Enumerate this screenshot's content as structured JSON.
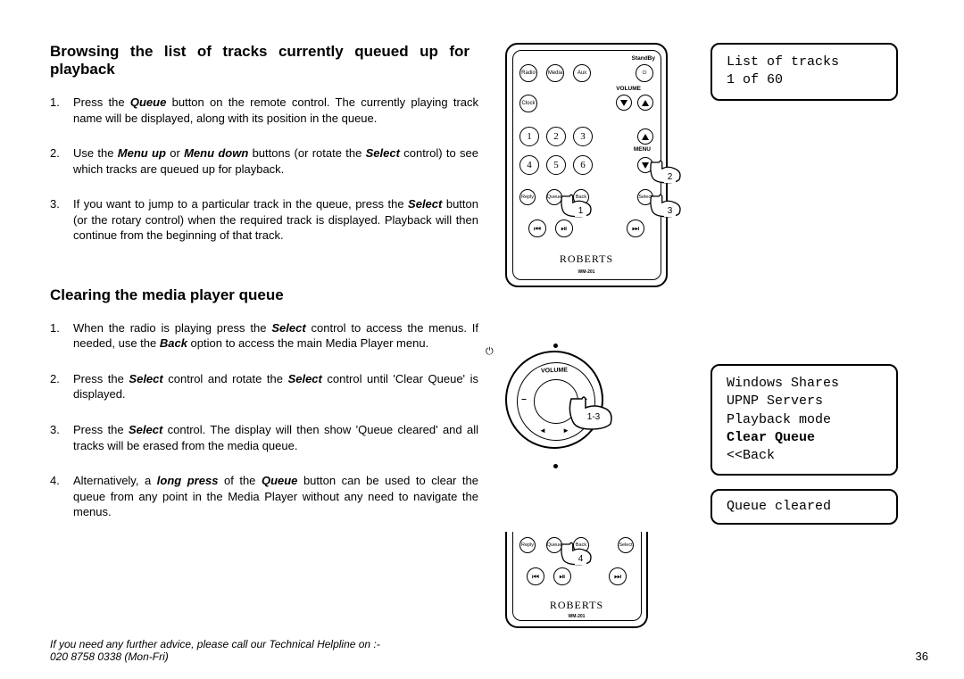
{
  "heading1_line1": "Browsing the list of tracks currently queued up for",
  "heading1_line2": "playback",
  "section1": {
    "i1": {
      "n": "1.",
      "t": "Press the <span class='bi'>Queue</span> button on the remote control. The currently playing track name will be displayed, along with its position in the queue."
    },
    "i2": {
      "n": "2.",
      "t": "Use the <span class='bi'>Menu up</span> or <span class='bi'>Menu down</span> buttons (or rotate the <span class='bi'>Select</span> control) to see which tracks are queued up for playback."
    },
    "i3": {
      "n": "3.",
      "t": "If you want to jump to a particular track in the queue, press the <span class='bi'>Select</span> button (or the rotary control) when the required track is displayed. Playback will then continue from the beginning of that track."
    }
  },
  "heading2": "Clearing the media player queue",
  "section2": {
    "i1": {
      "n": "1.",
      "t": "When the radio is playing press the <span class='bi'>Select</span> control to access the menus. If needed, use the <span class='bi'>Back</span> option to access the main Media Player menu."
    },
    "i2": {
      "n": "2.",
      "t": "Press the <span class='bi'>Select</span> control and rotate the <span class='bi'>Select</span> control until 'Clear Queue' is displayed."
    },
    "i3": {
      "n": "3.",
      "t": "Press the <span class='bi'>Select</span> control. The display will then show 'Queue cleared' and all tracks will be erased from the media queue."
    },
    "i4": {
      "n": "4.",
      "t": "Alternatively, a <span class='bi'>long press</span> of the <span class='bi'>Queue</span> button can be used to clear the queue from any point in the Media Player without any need to navigate the menus."
    }
  },
  "footer_line1": "If you need any further advice, please call our Technical Helpline on :-",
  "footer_line2": "020 8758 0338 (Mon-Fri)",
  "page_number": "36",
  "screen1": {
    "l1": "List of tracks",
    "l2": "1 of 60"
  },
  "screen2": {
    "l1": "Windows Shares",
    "l2": "UPNP Servers",
    "l3": "Playback mode",
    "l4": "Clear Queue",
    "l5": "<<Back"
  },
  "screen3": {
    "l1": "Queue cleared"
  },
  "remote": {
    "standby": "StandBy",
    "radio": "Radio",
    "media": "Media",
    "aux": "Aux",
    "volume": "VOLUME",
    "menu": "MENU",
    "clock": "Clock",
    "b1": "1",
    "b2": "2",
    "b3": "3",
    "b4": "4",
    "b5": "5",
    "b6": "6",
    "reply": "Reply",
    "queue": "Queue",
    "back": "Back",
    "select": "Select",
    "brand": "ROBERTS",
    "model": "WM-201"
  },
  "hand_nums": {
    "h1": "1",
    "h2": "2",
    "h3": "3",
    "h4": "1-3",
    "h5": "4"
  },
  "dial_vol": "VOLUME"
}
